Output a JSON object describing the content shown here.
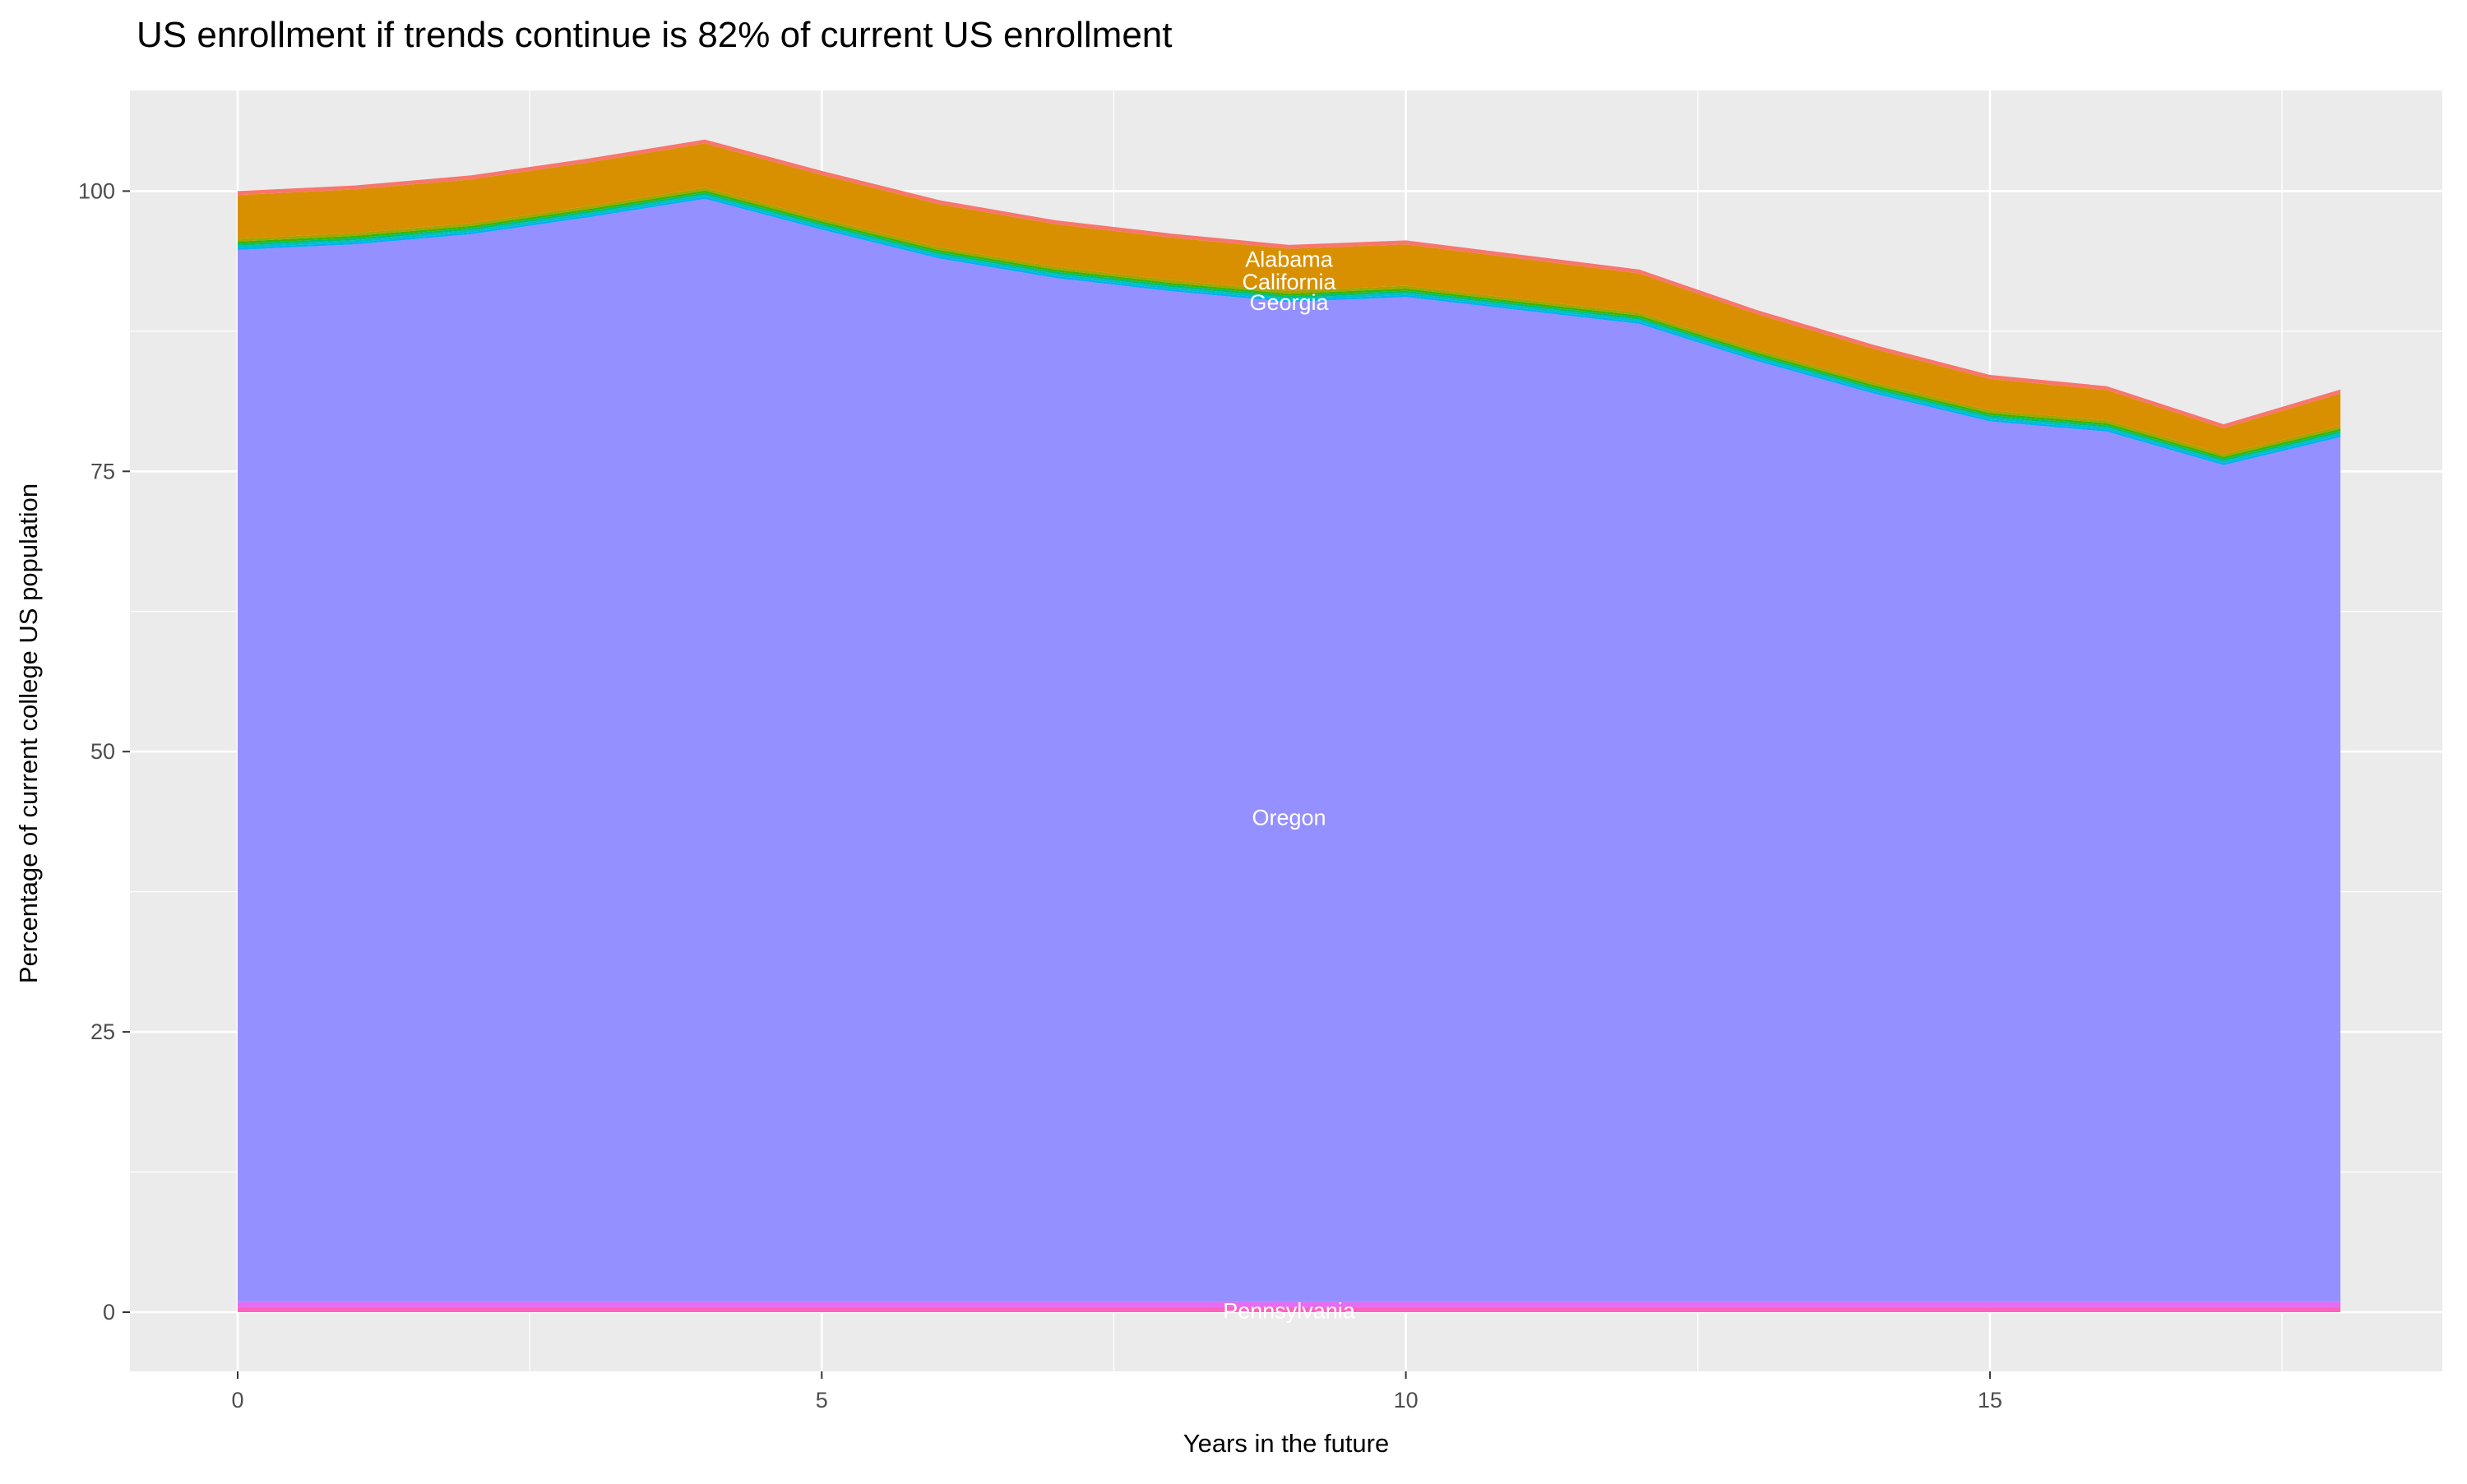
{
  "chart_data": {
    "type": "area",
    "stacked": true,
    "title": "US enrollment if trends continue is 82% of current US enrollment",
    "xlabel": "Years in the future",
    "ylabel": "Percentage of current college US population",
    "x": [
      0,
      1,
      2,
      3,
      4,
      5,
      6,
      7,
      8,
      9,
      10,
      11,
      12,
      13,
      14,
      15,
      16,
      17,
      18
    ],
    "xlim": [
      0,
      18
    ],
    "ylim": [
      0,
      104.6
    ],
    "x_ticks": [
      {
        "value": 0,
        "label": "0"
      },
      {
        "value": 5,
        "label": "5"
      },
      {
        "value": 10,
        "label": "10"
      },
      {
        "value": 15,
        "label": "15"
      }
    ],
    "y_ticks": [
      {
        "value": 0,
        "label": "0"
      },
      {
        "value": 25,
        "label": "25"
      },
      {
        "value": 50,
        "label": "50"
      },
      {
        "value": 75,
        "label": "75"
      },
      {
        "value": 100,
        "label": "100"
      }
    ],
    "x_minor": [
      2.5,
      7.5,
      12.5,
      17.5
    ],
    "y_minor": [
      12.5,
      37.5,
      62.5,
      87.5
    ],
    "grid": true,
    "legend": "none",
    "panel_bg": "#EBEBEB",
    "grid_color": "#FFFFFF",
    "tick_mark_color": "#333333",
    "axis_text_color": "#4D4D4D",
    "annotation_text_color": "#FFFFFF",
    "series": [
      {
        "label": "Alabama",
        "color": "#F8766D",
        "values": [
          0.35,
          0.35,
          0.35,
          0.35,
          0.35,
          0.35,
          0.35,
          0.35,
          0.35,
          0.35,
          0.35,
          0.35,
          0.35,
          0.35,
          0.35,
          0.35,
          0.35,
          0.35,
          0.35
        ]
      },
      {
        "label": "California",
        "color": "#D89000",
        "values": [
          3.9,
          3.9,
          3.9,
          3.9,
          3.95,
          3.9,
          3.85,
          3.8,
          3.8,
          3.75,
          3.7,
          3.6,
          3.5,
          3.2,
          3.0,
          2.8,
          2.7,
          2.3,
          2.9
        ]
      },
      {
        "label": "Georgia",
        "color": "#A3A500",
        "values": [
          0.25,
          0.25,
          0.25,
          0.25,
          0.25,
          0.25,
          0.25,
          0.25,
          0.25,
          0.25,
          0.25,
          0.25,
          0.25,
          0.25,
          0.25,
          0.25,
          0.25,
          0.25,
          0.25
        ]
      },
      {
        "label": "",
        "color": "#39B600",
        "values": [
          0.19,
          0.19,
          0.19,
          0.19,
          0.19,
          0.19,
          0.19,
          0.19,
          0.19,
          0.19,
          0.19,
          0.19,
          0.19,
          0.19,
          0.19,
          0.19,
          0.19,
          0.19,
          0.19
        ]
      },
      {
        "label": "",
        "color": "#00BF7D",
        "values": [
          0.19,
          0.19,
          0.19,
          0.19,
          0.19,
          0.19,
          0.19,
          0.19,
          0.19,
          0.19,
          0.19,
          0.19,
          0.19,
          0.19,
          0.19,
          0.19,
          0.19,
          0.19,
          0.19
        ]
      },
      {
        "label": "",
        "color": "#00BFC4",
        "values": [
          0.19,
          0.19,
          0.19,
          0.19,
          0.19,
          0.19,
          0.19,
          0.19,
          0.19,
          0.19,
          0.19,
          0.19,
          0.19,
          0.19,
          0.19,
          0.19,
          0.19,
          0.19,
          0.19
        ]
      },
      {
        "label": "",
        "color": "#00B0F6",
        "values": [
          0.18,
          0.18,
          0.18,
          0.18,
          0.18,
          0.18,
          0.18,
          0.18,
          0.18,
          0.18,
          0.18,
          0.18,
          0.18,
          0.18,
          0.18,
          0.18,
          0.18,
          0.18,
          0.18
        ]
      },
      {
        "label": "Oregon",
        "color": "#9590FF",
        "values": [
          93.85,
          94.35,
          95.25,
          96.75,
          98.4,
          95.65,
          93.1,
          91.35,
          90.15,
          89.2,
          89.65,
          88.45,
          87.25,
          83.95,
          81.05,
          78.55,
          77.65,
          74.65,
          77.15
        ]
      },
      {
        "label": "",
        "color": "#E76BF3",
        "values": [
          0.45,
          0.45,
          0.45,
          0.45,
          0.45,
          0.45,
          0.45,
          0.45,
          0.45,
          0.45,
          0.45,
          0.45,
          0.45,
          0.45,
          0.45,
          0.45,
          0.45,
          0.45,
          0.45
        ]
      },
      {
        "label": "Pennsylvania",
        "color": "#FF62BC",
        "values": [
          0.45,
          0.45,
          0.45,
          0.45,
          0.45,
          0.45,
          0.45,
          0.45,
          0.45,
          0.45,
          0.45,
          0.45,
          0.45,
          0.45,
          0.45,
          0.45,
          0.45,
          0.45,
          0.45
        ]
      }
    ],
    "annotations": [
      {
        "text": "Alabama",
        "x": 9,
        "y": 93.9
      },
      {
        "text": "California",
        "x": 9,
        "y": 91.9
      },
      {
        "text": "Georgia",
        "x": 9,
        "y": 90.05
      },
      {
        "text": "Oregon",
        "x": 9,
        "y": 44.1
      },
      {
        "text": "Pennsylvania",
        "x": 9,
        "y": 0.1
      }
    ]
  }
}
